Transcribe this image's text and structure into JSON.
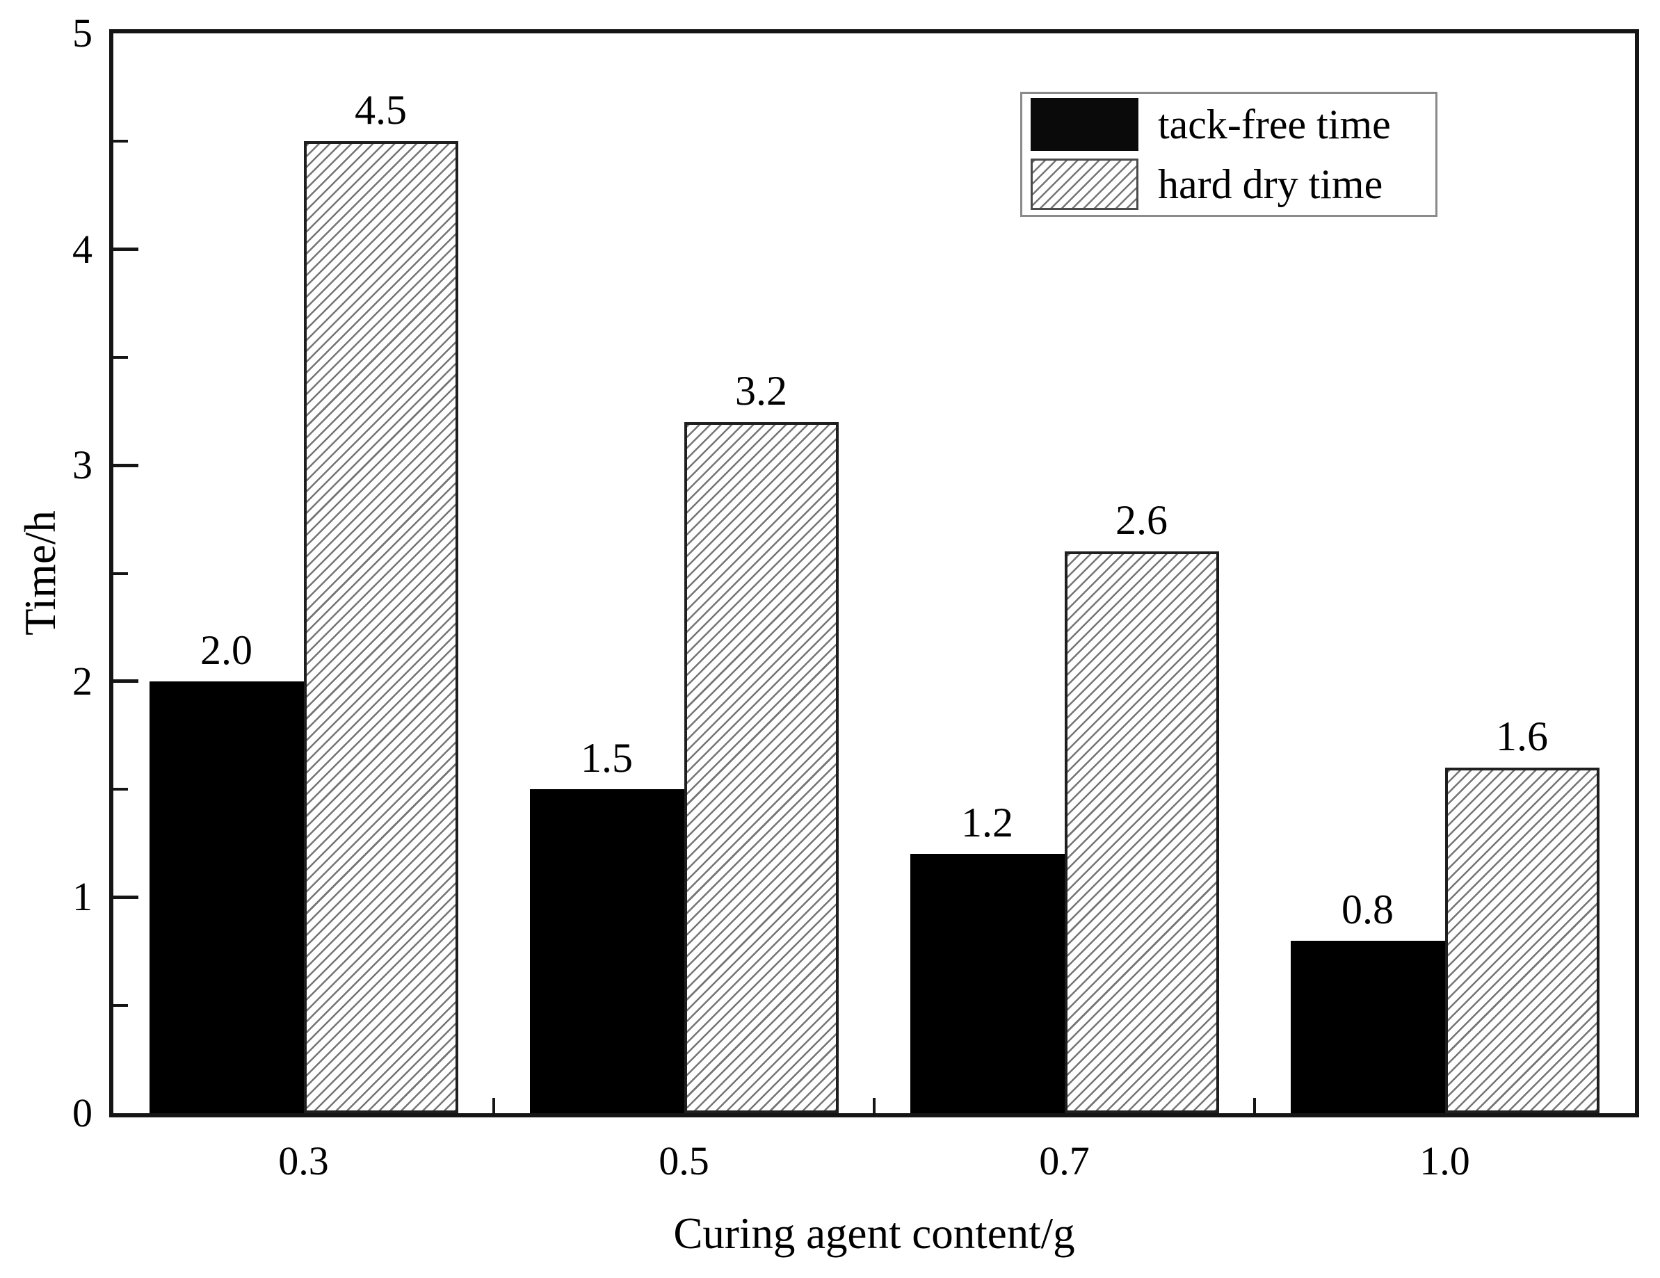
{
  "figure": {
    "background": "#ffffff"
  },
  "chart_data": {
    "type": "bar",
    "title": "",
    "xlabel": "Curing agent content/g",
    "ylabel": "Time/h",
    "categories": [
      "0.3",
      "0.5",
      "0.7",
      "1.0"
    ],
    "series": [
      {
        "name": "tack-free time",
        "style": "solid-black",
        "values": [
          2.0,
          1.5,
          1.2,
          0.8
        ],
        "value_labels": [
          "2.0",
          "1.5",
          "1.2",
          "0.8"
        ]
      },
      {
        "name": "hard dry time",
        "style": "diagonal-hatch",
        "values": [
          4.5,
          3.2,
          2.6,
          1.6
        ],
        "value_labels": [
          "4.5",
          "3.2",
          "2.6",
          "1.6"
        ]
      }
    ],
    "ylim": [
      0,
      5
    ],
    "y_major_ticks": [
      0,
      1,
      2,
      3,
      4,
      5
    ],
    "y_tick_labels": [
      "0",
      "1",
      "2",
      "3",
      "4",
      "5"
    ],
    "y_minor_tick_step": 0.5,
    "grid": false,
    "legend_position": "top-right",
    "bar_value_labels_shown": true
  },
  "colors": {
    "bar_fill": "#000000",
    "hatch_line": "#757575",
    "axis": "#151515",
    "text": "#000000",
    "legend_border": "#8a8a8a"
  }
}
